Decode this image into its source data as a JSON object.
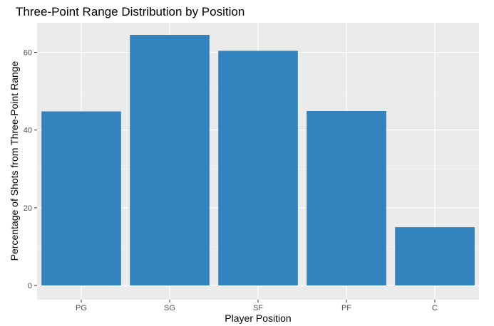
{
  "chart_data": {
    "type": "bar",
    "title": "Three-Point Range Distribution by Position",
    "xlabel": "Player Position",
    "ylabel": "Percentage of Shots from Three-Point Range",
    "categories": [
      "PG",
      "SG",
      "SF",
      "PF",
      "C"
    ],
    "values": [
      44.8,
      64.5,
      60.4,
      44.9,
      15.0
    ],
    "ylim": [
      0,
      67
    ],
    "yticks": [
      0,
      20,
      40,
      60
    ],
    "ytick_labels": [
      "0",
      "20",
      "40",
      "60"
    ],
    "grid": true,
    "legend": "none",
    "colors": {
      "bar": "#3182bd",
      "panel": "#ebebeb",
      "grid_major": "#ffffff",
      "grid_minor": "#f5f5f5",
      "tick": "#333333"
    }
  }
}
